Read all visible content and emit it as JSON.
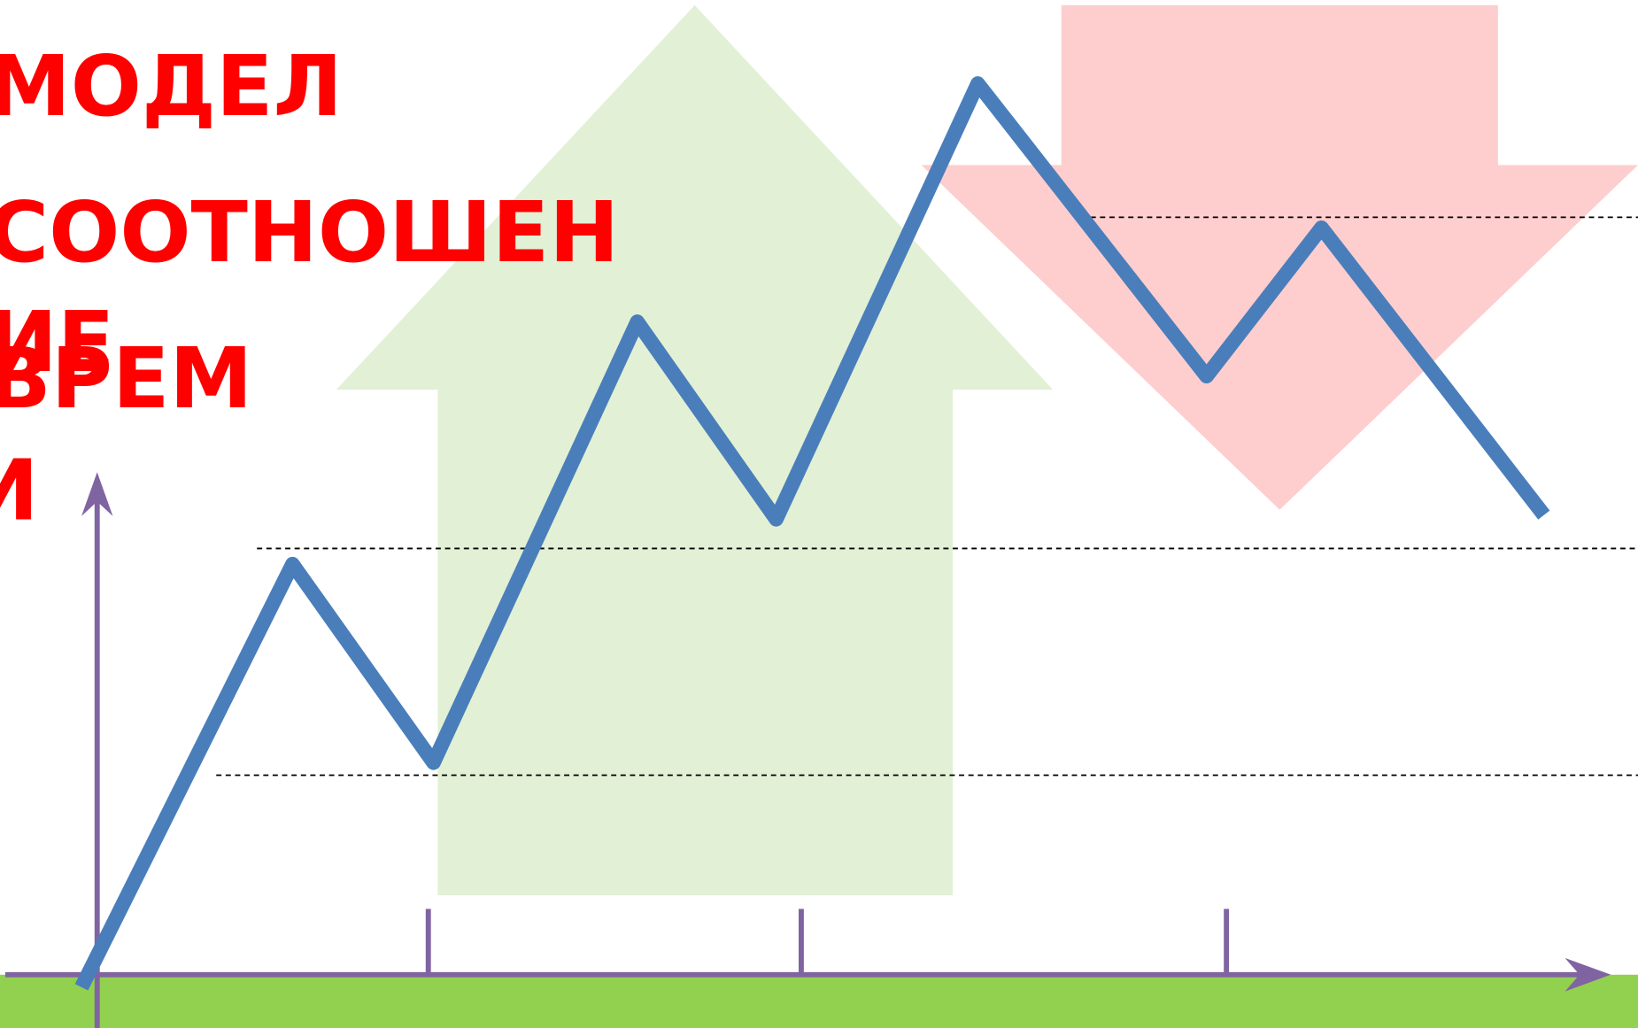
{
  "title_lines": [
    "МОДЕЛ",
    "СООТНОШЕН",
    "ИЕ",
    "ВРЕМ",
    "И"
  ]
}
